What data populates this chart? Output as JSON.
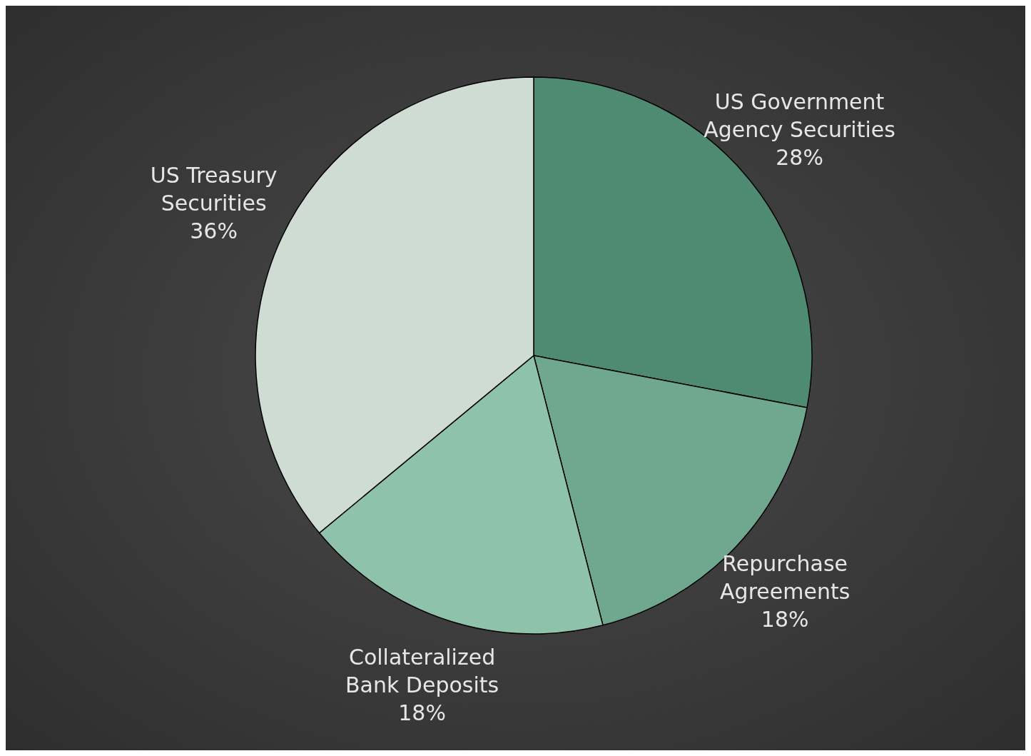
{
  "chart_data": {
    "type": "pie",
    "categories": [
      "US Government Agency Securities",
      "Repurchase Agreements",
      "Collateralized Bank Deposits",
      "US Treasury Securities"
    ],
    "values": [
      28,
      18,
      18,
      36
    ],
    "value_labels": [
      "28%",
      "18%",
      "18%",
      "36%"
    ],
    "colors": [
      "#4f8b73",
      "#6fa88f",
      "#8fc2aa",
      "#cfdcd4"
    ],
    "legend": false
  }
}
